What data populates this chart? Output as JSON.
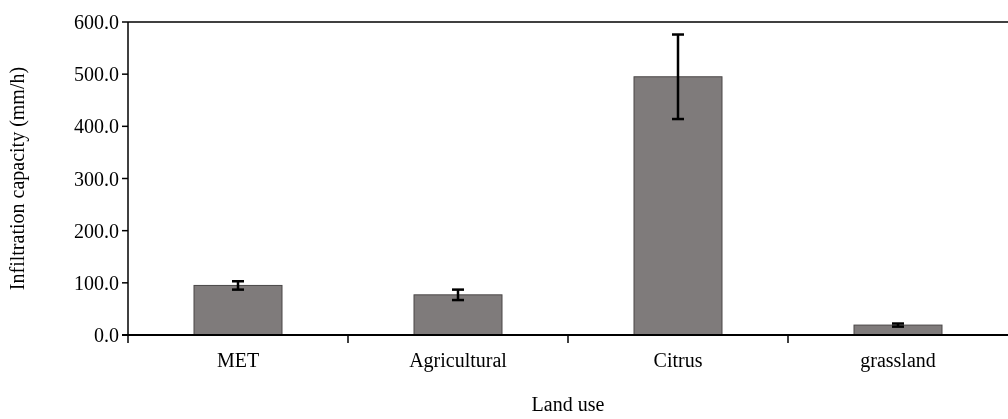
{
  "chart_data": {
    "type": "bar",
    "xlabel": "Land use",
    "ylabel": "Infiltration capacity (mm/h)",
    "categories": [
      "MET",
      "Agricultural",
      "Citrus",
      "grassland"
    ],
    "values": [
      95,
      77,
      495,
      19
    ],
    "errors": [
      8,
      10,
      81,
      3
    ],
    "color": "#7f7b7b",
    "ylim": [
      0,
      600
    ],
    "yticks": [
      {
        "value": 0,
        "label": "0.0"
      },
      {
        "value": 100,
        "label": "100.0"
      },
      {
        "value": 200,
        "label": "200.0"
      },
      {
        "value": 300,
        "label": "300.0"
      },
      {
        "value": 400,
        "label": "400.0"
      },
      {
        "value": 500,
        "label": "500.0"
      },
      {
        "value": 600,
        "label": "600.0"
      }
    ],
    "grid": false
  }
}
